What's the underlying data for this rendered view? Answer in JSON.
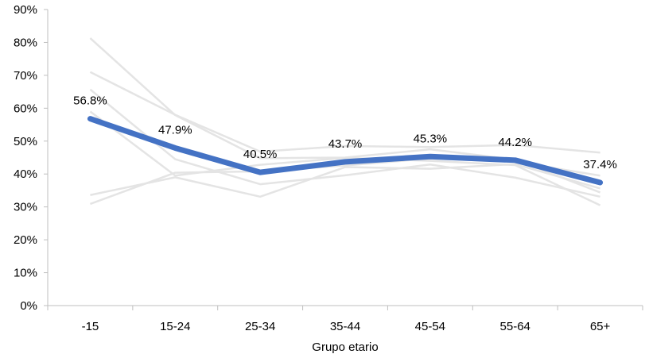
{
  "chart_data": {
    "type": "line",
    "title": "",
    "xlabel": "Grupo etario",
    "ylabel": "",
    "categories": [
      "-15",
      "15-24",
      "25-34",
      "35-44",
      "45-54",
      "55-64",
      "65+"
    ],
    "ylim": [
      0,
      90
    ],
    "yticks": [
      0,
      10,
      20,
      30,
      40,
      50,
      60,
      70,
      80,
      90
    ],
    "ytick_labels": [
      "0%",
      "10%",
      "20%",
      "30%",
      "40%",
      "50%",
      "60%",
      "70%",
      "80%",
      "90%"
    ],
    "grid": false,
    "legend": "none",
    "series": [
      {
        "values": [
          56.8,
          47.9,
          40.5,
          43.7,
          45.3,
          44.2,
          37.4
        ],
        "labels": [
          "56.8%",
          "47.9%",
          "40.5%",
          "43.7%",
          "45.3%",
          "44.2%",
          "37.4%"
        ],
        "color": "#4472C4",
        "emphasis": true
      },
      {
        "values": [
          81.3,
          57.9,
          44.8,
          45.0,
          47.5,
          44.4,
          34.4
        ],
        "color": "#E4E4E4"
      },
      {
        "values": [
          71.0,
          58.0,
          46.8,
          48.5,
          48.2,
          48.8,
          46.5
        ],
        "color": "#E4E4E4"
      },
      {
        "values": [
          65.7,
          44.5,
          36.9,
          39.6,
          42.9,
          38.9,
          33.1
        ],
        "color": "#E4E4E4"
      },
      {
        "values": [
          59.0,
          39.5,
          42.8,
          44.9,
          44.0,
          42.7,
          30.5
        ],
        "color": "#E4E4E4"
      },
      {
        "values": [
          33.6,
          39.0,
          33.1,
          42.1,
          41.6,
          43.0,
          35.6
        ],
        "color": "#E4E4E4"
      },
      {
        "values": [
          30.9,
          40.4,
          40.8,
          42.6,
          44.7,
          43.7,
          39.5
        ],
        "color": "#E4E4E4"
      }
    ]
  }
}
